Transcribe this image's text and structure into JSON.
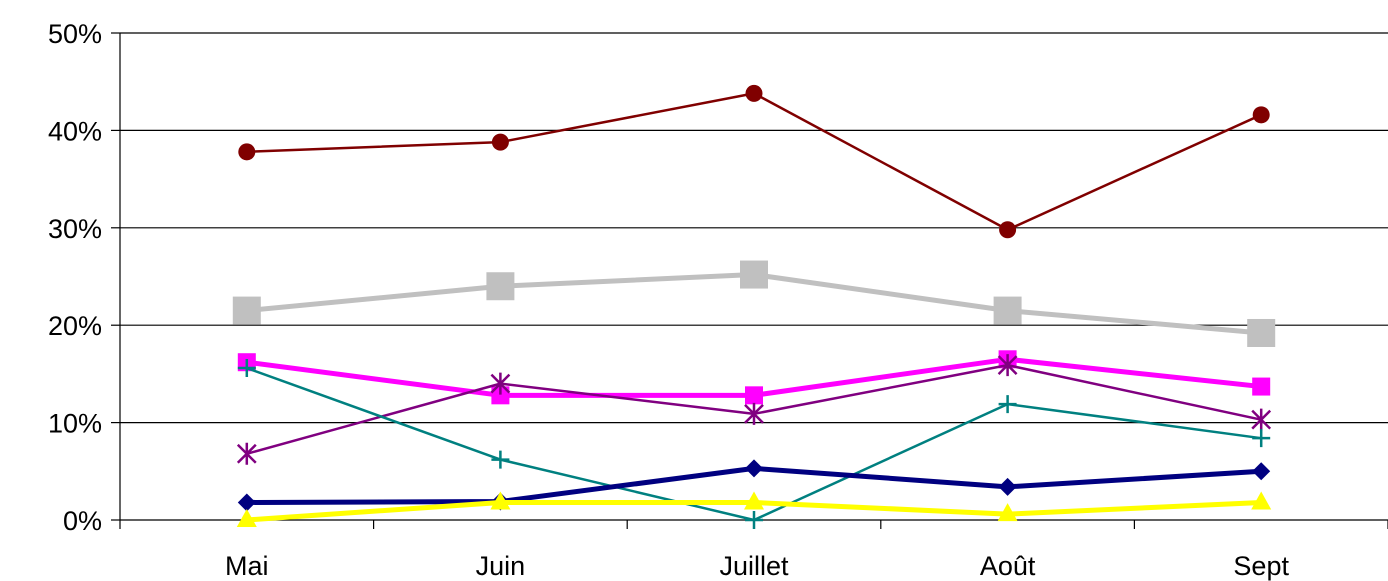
{
  "chart_data": {
    "type": "line",
    "categories": [
      "Mai",
      "Juin",
      "Juillet",
      "Août",
      "Sept"
    ],
    "y_tick_labels": [
      "0%",
      "10%",
      "20%",
      "30%",
      "40%",
      "50%"
    ],
    "y_ticks": [
      0,
      10,
      20,
      30,
      40,
      50
    ],
    "ylim": [
      0,
      50
    ],
    "grid": true,
    "legend": "none",
    "series": [
      {
        "color": "#800000",
        "marker": "circle",
        "values": [
          37.8,
          38.8,
          43.8,
          29.8,
          41.6
        ]
      },
      {
        "color": "#c0c0c0",
        "marker": "square",
        "values": [
          21.5,
          24.0,
          25.2,
          21.5,
          19.2
        ]
      },
      {
        "color": "#ff00ff",
        "marker": "square",
        "values": [
          16.2,
          12.8,
          12.8,
          16.5,
          13.7
        ]
      },
      {
        "color": "#800080",
        "marker": "asterisk",
        "values": [
          6.8,
          14.0,
          10.9,
          15.9,
          10.3
        ]
      },
      {
        "color": "#008080",
        "marker": "plus",
        "values": [
          15.6,
          6.2,
          0.0,
          11.9,
          8.4
        ]
      },
      {
        "color": "#000080",
        "marker": "diamond",
        "values": [
          1.8,
          1.9,
          5.3,
          3.4,
          5.0
        ]
      },
      {
        "color": "#ffff00",
        "marker": "triangle",
        "values": [
          0.0,
          1.8,
          1.8,
          0.6,
          1.8
        ]
      }
    ]
  }
}
